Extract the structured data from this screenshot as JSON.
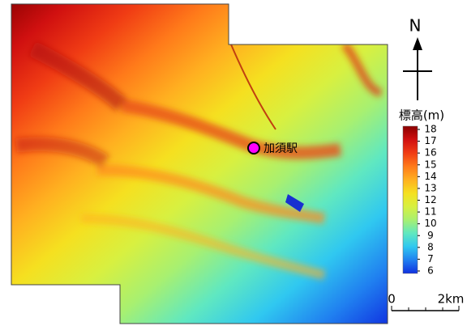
{
  "map": {
    "north": "N",
    "station": {
      "label": "加須駅"
    },
    "legend": {
      "title": "標高(m)",
      "ticks": [
        18,
        17,
        16,
        15,
        14,
        13,
        12,
        11,
        10,
        9,
        8,
        7,
        6
      ],
      "colors": [
        "#8b0000",
        "#d01010",
        "#f03c14",
        "#ff7a1a",
        "#ffb020",
        "#f5e020",
        "#d8f040",
        "#a8f070",
        "#60e8c0",
        "#30c8f0",
        "#2080f0",
        "#1030e0"
      ]
    },
    "scale_bar": {
      "start": "0",
      "end": "2km"
    }
  }
}
